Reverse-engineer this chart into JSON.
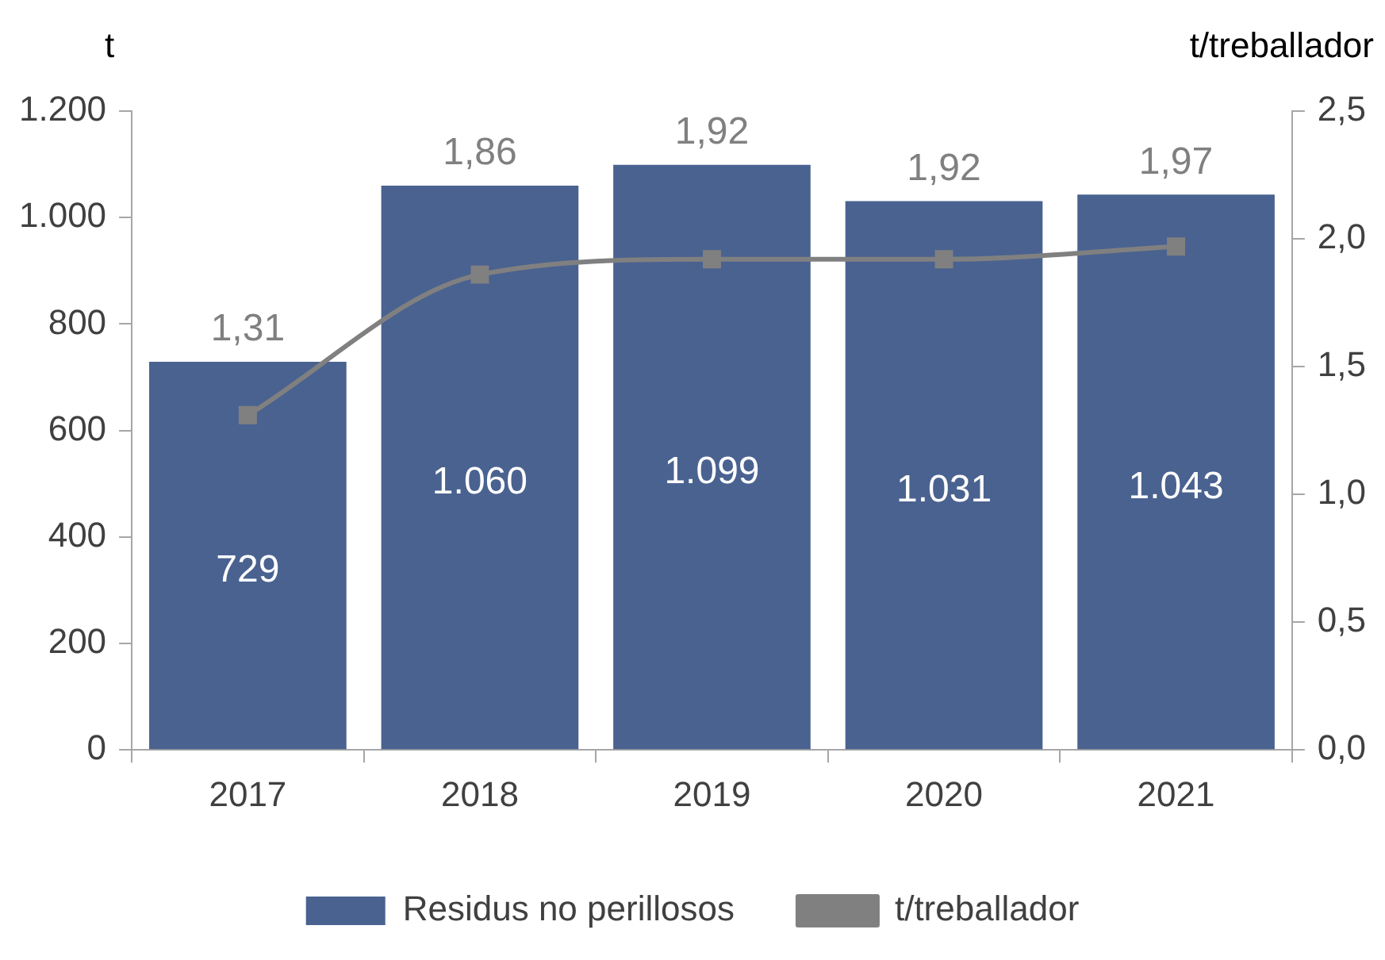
{
  "chart_data": {
    "type": "bar",
    "categories": [
      "2017",
      "2018",
      "2019",
      "2020",
      "2021"
    ],
    "series": [
      {
        "name": "Residus no perillosos",
        "color": "#4a6290",
        "values": [
          729,
          1060,
          1099,
          1031,
          1043
        ],
        "value_labels": [
          "729",
          "1.060",
          "1.099",
          "1.031",
          "1.043"
        ]
      },
      {
        "name": "t/treballador",
        "type": "line",
        "axis": "y2",
        "color": "#808080",
        "marker": "square",
        "values": [
          1.31,
          1.86,
          1.92,
          1.92,
          1.97
        ],
        "value_labels": [
          "1,31",
          "1,86",
          "1,92",
          "1,92",
          "1,97"
        ]
      }
    ],
    "ylabel": "t",
    "y2label": "t/treballador",
    "ylim": [
      0,
      1200
    ],
    "yticks": [
      0,
      200,
      400,
      600,
      800,
      {
        "value": 1000,
        "label": "1.000"
      },
      {
        "value": 1200,
        "label": "1.200"
      }
    ],
    "y2lim": [
      0,
      2.5
    ],
    "y2ticks": [
      {
        "value": 0,
        "label": "0,0"
      },
      {
        "value": 0.5,
        "label": "0,5"
      },
      {
        "value": 1,
        "label": "1,0"
      },
      {
        "value": 1.5,
        "label": "1,5"
      },
      {
        "value": 2,
        "label": "2,0"
      },
      {
        "value": 2.5,
        "label": "2,5"
      }
    ],
    "grid": false,
    "legend": "bottom"
  }
}
